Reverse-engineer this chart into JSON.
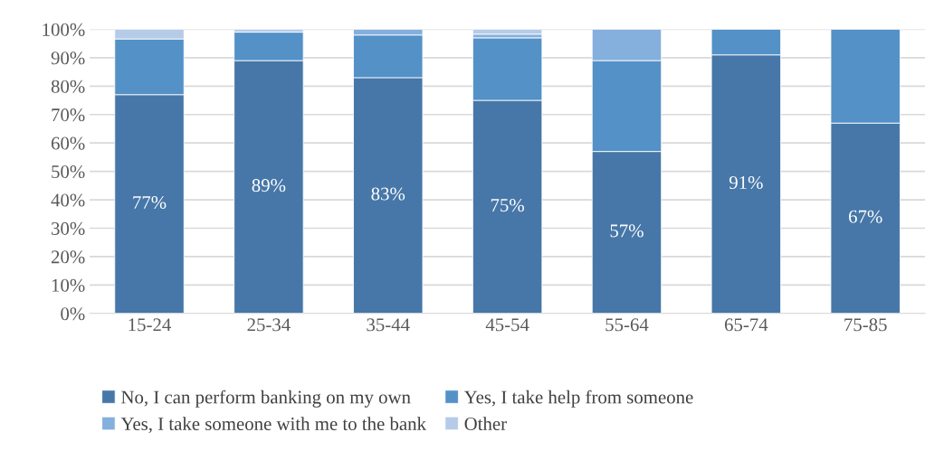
{
  "chart_data": {
    "type": "bar",
    "stacked": true,
    "categories": [
      "15-24",
      "25-34",
      "35-44",
      "45-54",
      "55-64",
      "65-74",
      "75-85"
    ],
    "series": [
      {
        "name": "No, I can perform banking on my own",
        "color": "#4677a8",
        "values": [
          77,
          89,
          83,
          75,
          57,
          91,
          67
        ],
        "value_labels": [
          "77%",
          "89%",
          "83%",
          "75%",
          "57%",
          "91%",
          "67%"
        ]
      },
      {
        "name": "Yes, I take help from someone",
        "color": "#5391c7",
        "values": [
          19.6,
          10,
          15,
          22,
          32,
          9,
          33
        ]
      },
      {
        "name": "Yes, I take someone with me to the bank",
        "color": "#85afdc",
        "values": [
          null,
          null,
          2,
          1.3,
          11,
          null,
          null
        ]
      },
      {
        "name": "Other",
        "color": "#b5cbe8",
        "values": [
          3.4,
          1,
          null,
          1.7,
          null,
          null,
          null
        ]
      }
    ],
    "ylim": [
      0,
      100
    ],
    "yticks": [
      {
        "value": 0,
        "label": "0%"
      },
      {
        "value": 10,
        "label": "10%"
      },
      {
        "value": 20,
        "label": "20%"
      },
      {
        "value": 30,
        "label": "30%"
      },
      {
        "value": 40,
        "label": "40%"
      },
      {
        "value": 50,
        "label": "50%"
      },
      {
        "value": 60,
        "label": "60%"
      },
      {
        "value": 70,
        "label": "70%"
      },
      {
        "value": 80,
        "label": "80%"
      },
      {
        "value": 90,
        "label": "90%"
      },
      {
        "value": 100,
        "label": "100%"
      }
    ],
    "grid": "y",
    "legend": "bottom"
  }
}
